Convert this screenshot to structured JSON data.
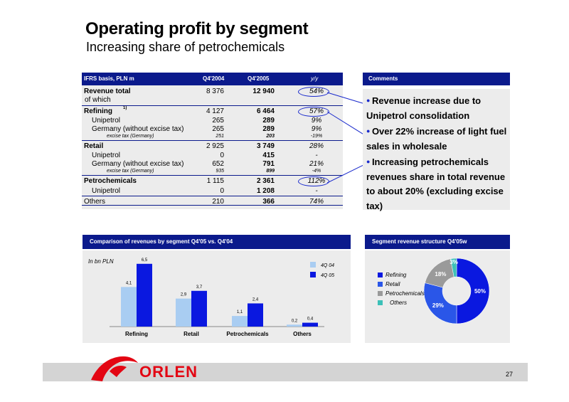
{
  "header": {
    "title": "Operating profit by segment",
    "subtitle": "Increasing share of petrochemicals"
  },
  "table": {
    "headers": {
      "label": "IFRS basis, PLN m",
      "q4_2004": "Q4'2004",
      "q4_2005": "Q4'2005",
      "yy": "y/y"
    },
    "rows": [
      {
        "label": "Revenue total",
        "v1": "8 376",
        "v2": "12 940",
        "yy": "54%"
      },
      {
        "label": "of which",
        "v1": "",
        "v2": "",
        "yy": ""
      },
      {
        "label": "Refining",
        "sup": "1)",
        "v1": "4 127",
        "v2": "6 464",
        "yy": "57%"
      },
      {
        "label": "Unipetrol",
        "v1": "265",
        "v2": "289",
        "yy": "9%"
      },
      {
        "label": "Germany (without excise tax)",
        "v1": "265",
        "v2": "289",
        "yy": "9%"
      },
      {
        "label": "excise tax (Germany)",
        "v1": "251",
        "v2": "203",
        "yy": "-19%"
      },
      {
        "label": "Retail",
        "v1": "2 925",
        "v2": "3 749",
        "yy": "28%"
      },
      {
        "label": "Unipetrol",
        "v1": "0",
        "v2": "415",
        "yy": "-"
      },
      {
        "label": "Germany (without excise tax)",
        "v1": "652",
        "v2": "791",
        "yy": "21%"
      },
      {
        "label": "excise tax (Germany)",
        "v1": "935",
        "v2": "899",
        "yy": "-4%"
      },
      {
        "label": "Petrochemicals",
        "v1": "1 115",
        "v2": "2 361",
        "yy": "112%"
      },
      {
        "label": "Unipetrol",
        "v1": "0",
        "v2": "1 208",
        "yy": "-"
      },
      {
        "label": "Others",
        "v1": "210",
        "v2": "366",
        "yy": "74%"
      }
    ]
  },
  "comments": {
    "title": "Comments",
    "items": [
      "Revenue increase due to Unipetrol consolidation",
      "Over 22% increase of light fuel sales in wholesale",
      "Increasing petrochemicals revenues share in total revenue to about 20% (excluding excise tax)"
    ]
  },
  "chart_data": [
    {
      "type": "bar",
      "title": "Comparison of revenues by segment Q4'05 vs. Q4'04",
      "ylabel": "In bn PLN",
      "categories": [
        "Refining",
        "Retail",
        "Petrochemicals",
        "Others"
      ],
      "series": [
        {
          "name": "4Q 04",
          "values": [
            4.1,
            2.9,
            1.1,
            0.2
          ],
          "labels": [
            "4,1",
            "2,9",
            "1,1",
            "0,2"
          ],
          "color": "#a9cdf2"
        },
        {
          "name": "4Q 05",
          "values": [
            6.5,
            3.7,
            2.4,
            0.4
          ],
          "labels": [
            "6,5",
            "3,7",
            "2,4",
            "0,4"
          ],
          "color": "#0a18e0"
        }
      ],
      "ylim": [
        0,
        7
      ],
      "grid": false,
      "legend": "top-right"
    },
    {
      "type": "pie",
      "title": "Segment revenue structure Q4'05w",
      "categories": [
        "Refining",
        "Retail",
        "Petrochemicals",
        "Others"
      ],
      "values": [
        50,
        29,
        18,
        3
      ],
      "labels": [
        "50%",
        "29%",
        "18%",
        "3%"
      ],
      "colors": [
        "#0a18e0",
        "#2a56e8",
        "#9a9a9a",
        "#3cc0b8"
      ],
      "legend": "left"
    }
  ],
  "footer": {
    "logo_text": "ORLEN",
    "page_number": "27"
  }
}
